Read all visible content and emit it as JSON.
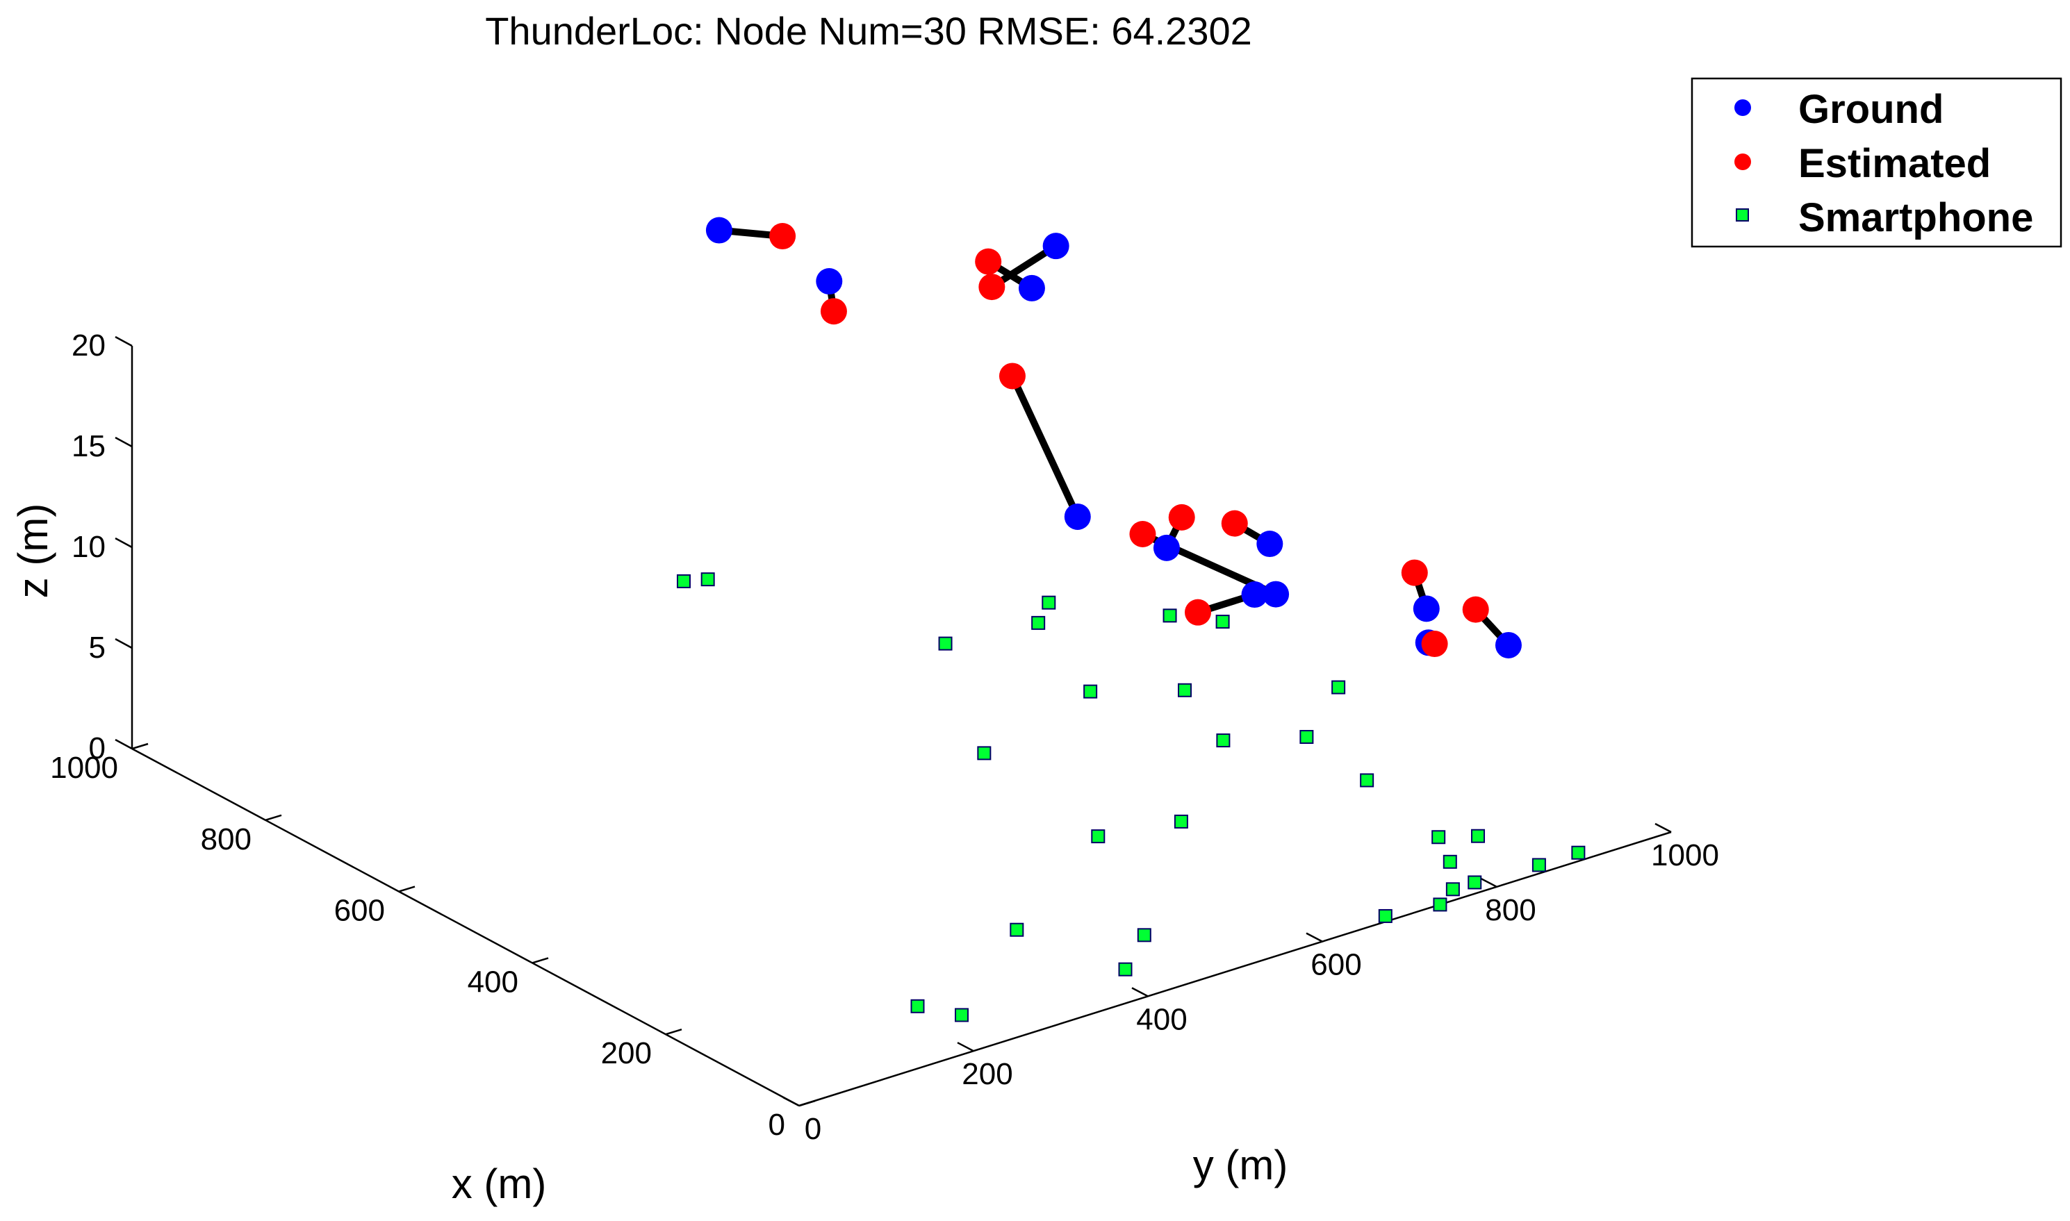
{
  "chart_data": {
    "type": "scatter",
    "title": "ThunderLoc:  Node Num=30   RMSE: 64.2302",
    "xlabel": "x (m)",
    "ylabel": "y (m)",
    "zlabel": "z (m)",
    "xlim": [
      0,
      1000
    ],
    "ylim": [
      0,
      1000
    ],
    "zlim": [
      0,
      20
    ],
    "x_ticks": [
      "0",
      "200",
      "400",
      "600",
      "800",
      "1000"
    ],
    "y_ticks": [
      "0",
      "200",
      "400",
      "600",
      "800",
      "1000"
    ],
    "z_ticks": [
      "0",
      "5",
      "10",
      "15",
      "20"
    ],
    "grid": false,
    "legend_position": "top-right",
    "colors": {
      "ground": "#0000ff",
      "estimated": "#ff0000",
      "smartphone": "#00ff33",
      "error_line": "#000000"
    },
    "series": [
      {
        "name": "Ground",
        "marker": "circle",
        "points": [
          {
            "x": 950,
            "y": 635,
            "z": 18
          },
          {
            "x": 870,
            "y": 700,
            "z": 16
          },
          {
            "x": 700,
            "y": 830,
            "z": 19
          },
          {
            "x": 710,
            "y": 810,
            "z": 17
          },
          {
            "x": 210,
            "y": 480,
            "z": 19
          },
          {
            "x": 70,
            "y": 475,
            "z": 20
          },
          {
            "x": 20,
            "y": 555,
            "z": 20
          },
          {
            "x": 10,
            "y": 530,
            "z": 18
          },
          {
            "x": 390,
            "y": 845,
            "z": 7
          },
          {
            "x": 210,
            "y": 880,
            "z": 9
          },
          {
            "x": 220,
            "y": 890,
            "z": 7
          },
          {
            "x": 100,
            "y": 890,
            "z": 9
          }
        ]
      },
      {
        "name": "Estimated",
        "marker": "circle",
        "points": [
          {
            "x": 940,
            "y": 700,
            "z": 17
          },
          {
            "x": 850,
            "y": 690,
            "z": 15
          },
          {
            "x": 770,
            "y": 810,
            "z": 16
          },
          {
            "x": 710,
            "y": 760,
            "z": 19
          },
          {
            "x": 530,
            "y": 650,
            "z": 18
          },
          {
            "x": 80,
            "y": 500,
            "z": 21
          },
          {
            "x": 40,
            "y": 530,
            "z": 21
          },
          {
            "x": 10,
            "y": 465,
            "z": 18
          },
          {
            "x": 570,
            "y": 830,
            "z": 7
          },
          {
            "x": 280,
            "y": 920,
            "z": 9
          },
          {
            "x": 250,
            "y": 920,
            "z": 6
          },
          {
            "x": 110,
            "y": 860,
            "z": 11
          }
        ]
      },
      {
        "name": "Smartphone",
        "marker": "square",
        "points": [
          {
            "x": 990,
            "y": 625,
            "z": 0
          },
          {
            "x": 980,
            "y": 645,
            "z": 0
          },
          {
            "x": 735,
            "y": 730,
            "z": 0
          },
          {
            "x": 720,
            "y": 825,
            "z": 0
          },
          {
            "x": 570,
            "y": 770,
            "z": 0
          },
          {
            "x": 440,
            "y": 955,
            "z": 0
          },
          {
            "x": 660,
            "y": 930,
            "z": 0
          },
          {
            "x": 520,
            "y": 610,
            "z": 0
          },
          {
            "x": 520,
            "y": 840,
            "z": 0
          },
          {
            "x": 750,
            "y": 860,
            "z": 0
          },
          {
            "x": 410,
            "y": 800,
            "z": 0
          },
          {
            "x": 370,
            "y": 865,
            "z": 0
          },
          {
            "x": 310,
            "y": 580,
            "z": 0
          },
          {
            "x": 290,
            "y": 660,
            "z": 0
          },
          {
            "x": 260,
            "y": 850,
            "z": 0
          },
          {
            "x": 620,
            "y": 960,
            "z": 0
          },
          {
            "x": 120,
            "y": 825,
            "z": 0
          },
          {
            "x": 100,
            "y": 855,
            "z": 0
          },
          {
            "x": 70,
            "y": 800,
            "z": 0
          },
          {
            "x": 15,
            "y": 860,
            "z": 0
          },
          {
            "x": 15,
            "y": 905,
            "z": 0
          },
          {
            "x": 20,
            "y": 790,
            "z": 0
          },
          {
            "x": 20,
            "y": 765,
            "z": 0
          },
          {
            "x": 0,
            "y": 735,
            "z": 0
          },
          {
            "x": 10,
            "y": 680,
            "z": 0
          },
          {
            "x": 110,
            "y": 480,
            "z": 0
          },
          {
            "x": 60,
            "y": 420,
            "z": 0
          },
          {
            "x": 190,
            "y": 395,
            "z": 0
          },
          {
            "x": 70,
            "y": 240,
            "z": 0
          },
          {
            "x": 110,
            "y": 220,
            "z": 0
          }
        ]
      }
    ],
    "error_pairs": [
      [
        0,
        0
      ],
      [
        1,
        1
      ],
      [
        2,
        2
      ],
      [
        3,
        3
      ],
      [
        4,
        4
      ],
      [
        5,
        5
      ],
      [
        6,
        6
      ],
      [
        7,
        7
      ],
      [
        8,
        8
      ],
      [
        9,
        9
      ],
      [
        10,
        10
      ],
      [
        11,
        11
      ]
    ]
  }
}
